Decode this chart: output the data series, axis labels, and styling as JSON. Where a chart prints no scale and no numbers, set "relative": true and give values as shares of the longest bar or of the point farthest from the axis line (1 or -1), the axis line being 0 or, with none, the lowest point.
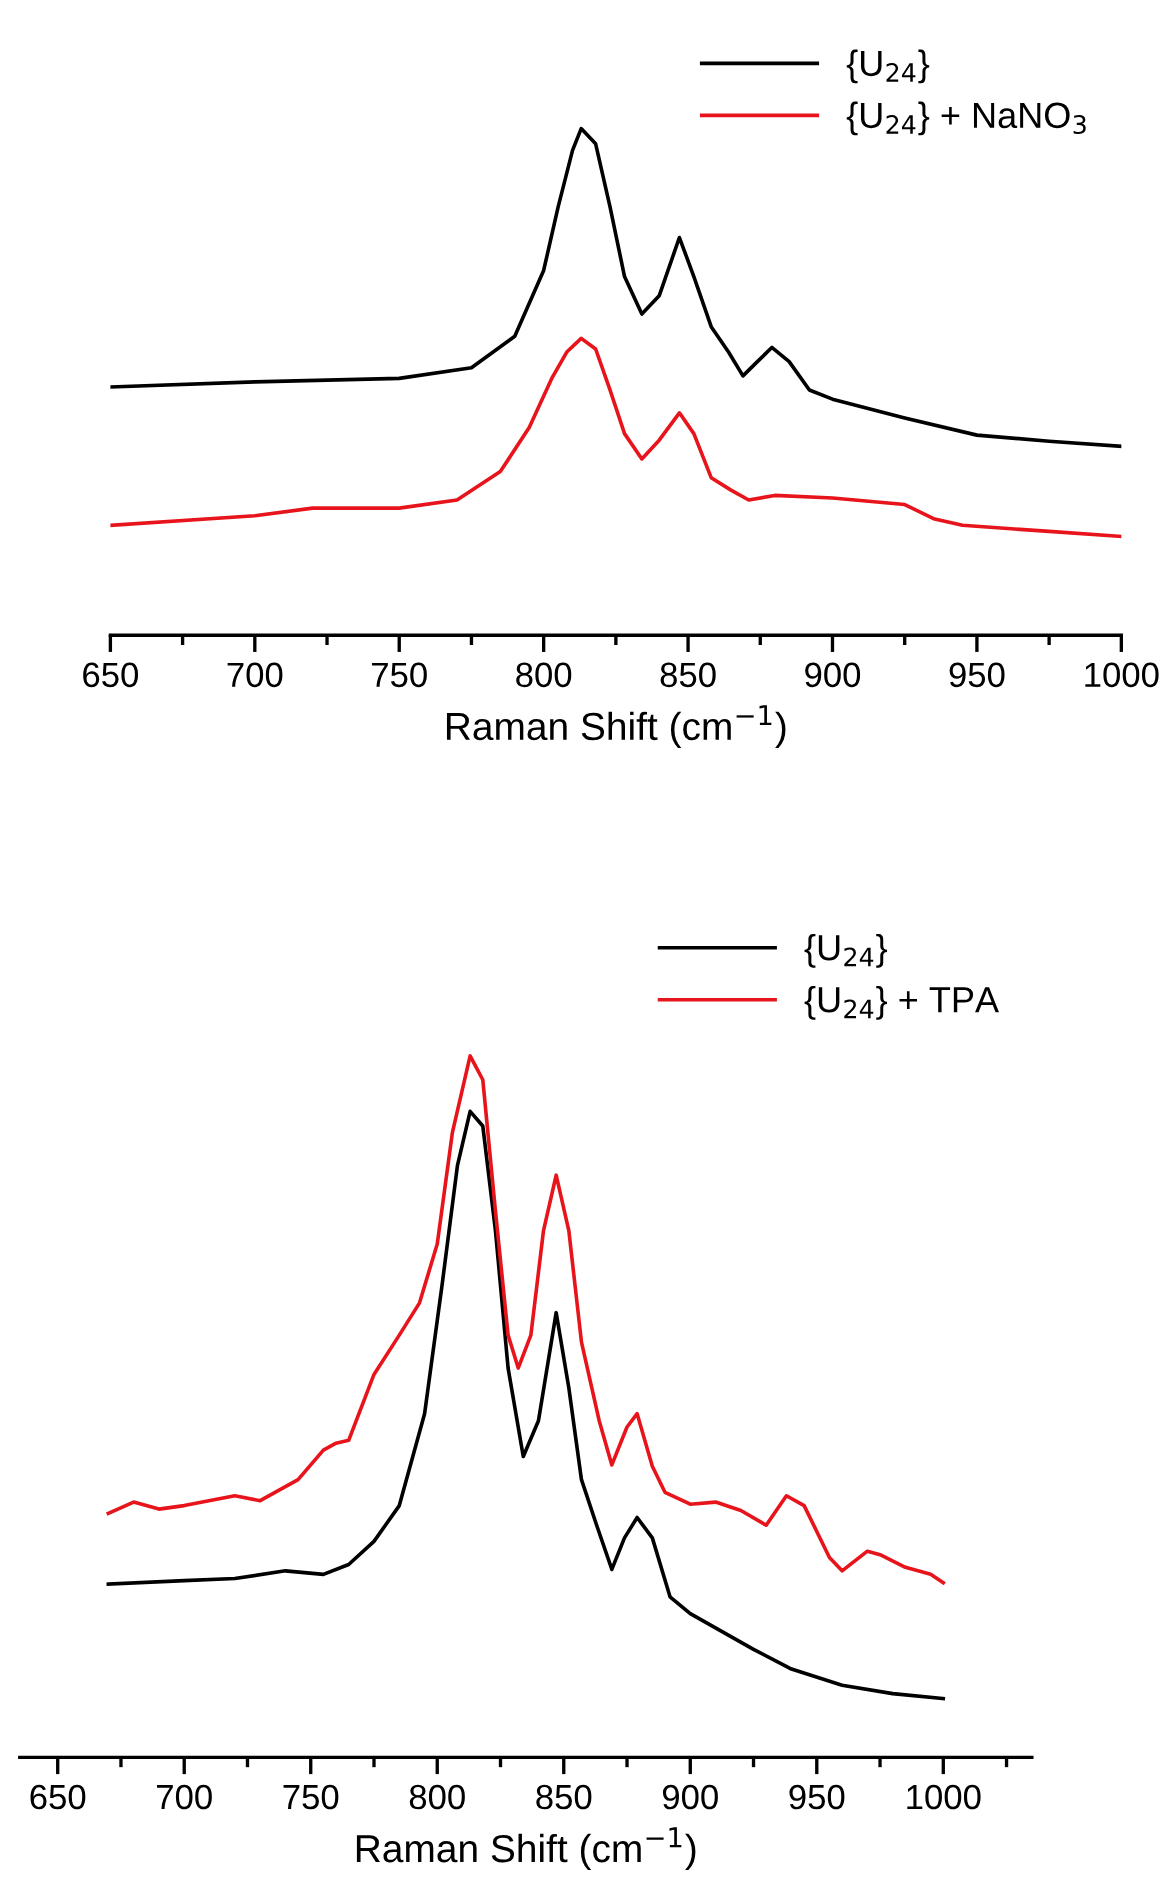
{
  "chart_data": [
    {
      "type": "line",
      "relative": true,
      "xlabel": "Raman Shift (cm$^{−1}$)",
      "xlim": [
        650,
        1000
      ],
      "xticks": [
        650,
        {
          "value": 675,
          "label": null
        },
        700,
        {
          "value": 725,
          "label": null
        },
        750,
        {
          "value": 775,
          "label": null
        },
        800,
        {
          "value": 825,
          "label": null
        },
        850,
        {
          "value": 875,
          "label": null
        },
        900,
        {
          "value": 925,
          "label": null
        },
        950,
        {
          "value": 975,
          "label": null
        },
        1000
      ],
      "legend": "top right",
      "grid": false,
      "marker": "none",
      "line_style": "solid",
      "tick_labels": "x",
      "series": [
        {
          "name": "{U$_{24}$}",
          "color": "#000000",
          "x": [
            650,
            700,
            750,
            775,
            790,
            800,
            805,
            810,
            813,
            818,
            823,
            828,
            834,
            840,
            847,
            852,
            858,
            864,
            869,
            874,
            879,
            885,
            892,
            900,
            925,
            950,
            975,
            1000
          ],
          "values": [
            0.49,
            0.5,
            0.507,
            0.528,
            0.59,
            0.72,
            0.845,
            0.957,
            1.0,
            0.97,
            0.845,
            0.708,
            0.634,
            0.67,
            0.785,
            0.708,
            0.609,
            0.559,
            0.512,
            0.54,
            0.568,
            0.54,
            0.484,
            0.466,
            0.429,
            0.395,
            0.383,
            0.373
          ]
        },
        {
          "name": "{U$_{24}$} + NaNO$_{3}$",
          "color": "#e8141b",
          "x": [
            650,
            700,
            720,
            750,
            770,
            785,
            795,
            803,
            808,
            813,
            818,
            823,
            828,
            834,
            840,
            847,
            852,
            858,
            865,
            871,
            880,
            900,
            925,
            935,
            945,
            975,
            1000
          ],
          "values": [
            0.217,
            0.236,
            0.251,
            0.251,
            0.267,
            0.323,
            0.41,
            0.509,
            0.559,
            0.586,
            0.565,
            0.484,
            0.398,
            0.348,
            0.385,
            0.439,
            0.398,
            0.311,
            0.286,
            0.267,
            0.276,
            0.271,
            0.258,
            0.23,
            0.217,
            0.205,
            0.195
          ]
        }
      ]
    },
    {
      "type": "line",
      "relative": true,
      "xlabel": "Raman Shift (cm$^{−1}$)",
      "xlim": [
        635,
        1035
      ],
      "xticks": [
        650,
        {
          "value": 675,
          "label": null
        },
        700,
        {
          "value": 725,
          "label": null
        },
        750,
        {
          "value": 775,
          "label": null
        },
        800,
        {
          "value": 825,
          "label": null
        },
        850,
        {
          "value": 875,
          "label": null
        },
        900,
        {
          "value": 925,
          "label": null
        },
        950,
        {
          "value": 975,
          "label": null
        },
        1000,
        {
          "value": 1025,
          "label": null
        }
      ],
      "legend": "top right",
      "grid": false,
      "marker": "none",
      "line_style": "solid",
      "tick_labels": "x",
      "series": [
        {
          "name": "{U$_{24}$}",
          "color": "#000000",
          "x": [
            670,
            700,
            720,
            740,
            755,
            765,
            775,
            785,
            795,
            802,
            808,
            813,
            818,
            823,
            828,
            834,
            840,
            847,
            852,
            857,
            863,
            869,
            874,
            879,
            885,
            892,
            900,
            925,
            940,
            960,
            980,
            1000
          ],
          "values": [
            0.247,
            0.252,
            0.255,
            0.266,
            0.261,
            0.275,
            0.308,
            0.359,
            0.49,
            0.676,
            0.844,
            0.921,
            0.9,
            0.751,
            0.555,
            0.429,
            0.48,
            0.634,
            0.527,
            0.396,
            0.331,
            0.268,
            0.313,
            0.342,
            0.313,
            0.229,
            0.205,
            0.154,
            0.126,
            0.103,
            0.091,
            0.084
          ]
        },
        {
          "name": "{U$_{24}$} + TPA",
          "color": "#e8141b",
          "x": [
            670,
            680,
            690,
            700,
            720,
            730,
            745,
            755,
            760,
            765,
            775,
            785,
            793,
            800,
            806,
            813,
            818,
            823,
            828,
            832,
            837,
            842,
            847,
            852,
            857,
            864,
            869,
            875,
            879,
            885,
            890,
            900,
            910,
            920,
            930,
            938,
            945,
            955,
            960,
            970,
            975,
            985,
            995,
            1000
          ],
          "values": [
            0.348,
            0.364,
            0.354,
            0.359,
            0.373,
            0.366,
            0.396,
            0.438,
            0.448,
            0.452,
            0.546,
            0.602,
            0.648,
            0.732,
            0.891,
            1.0,
            0.966,
            0.779,
            0.602,
            0.555,
            0.602,
            0.751,
            0.83,
            0.751,
            0.592,
            0.48,
            0.417,
            0.471,
            0.49,
            0.415,
            0.378,
            0.361,
            0.364,
            0.352,
            0.331,
            0.373,
            0.359,
            0.285,
            0.266,
            0.294,
            0.289,
            0.271,
            0.261,
            0.249
          ]
        }
      ]
    }
  ]
}
